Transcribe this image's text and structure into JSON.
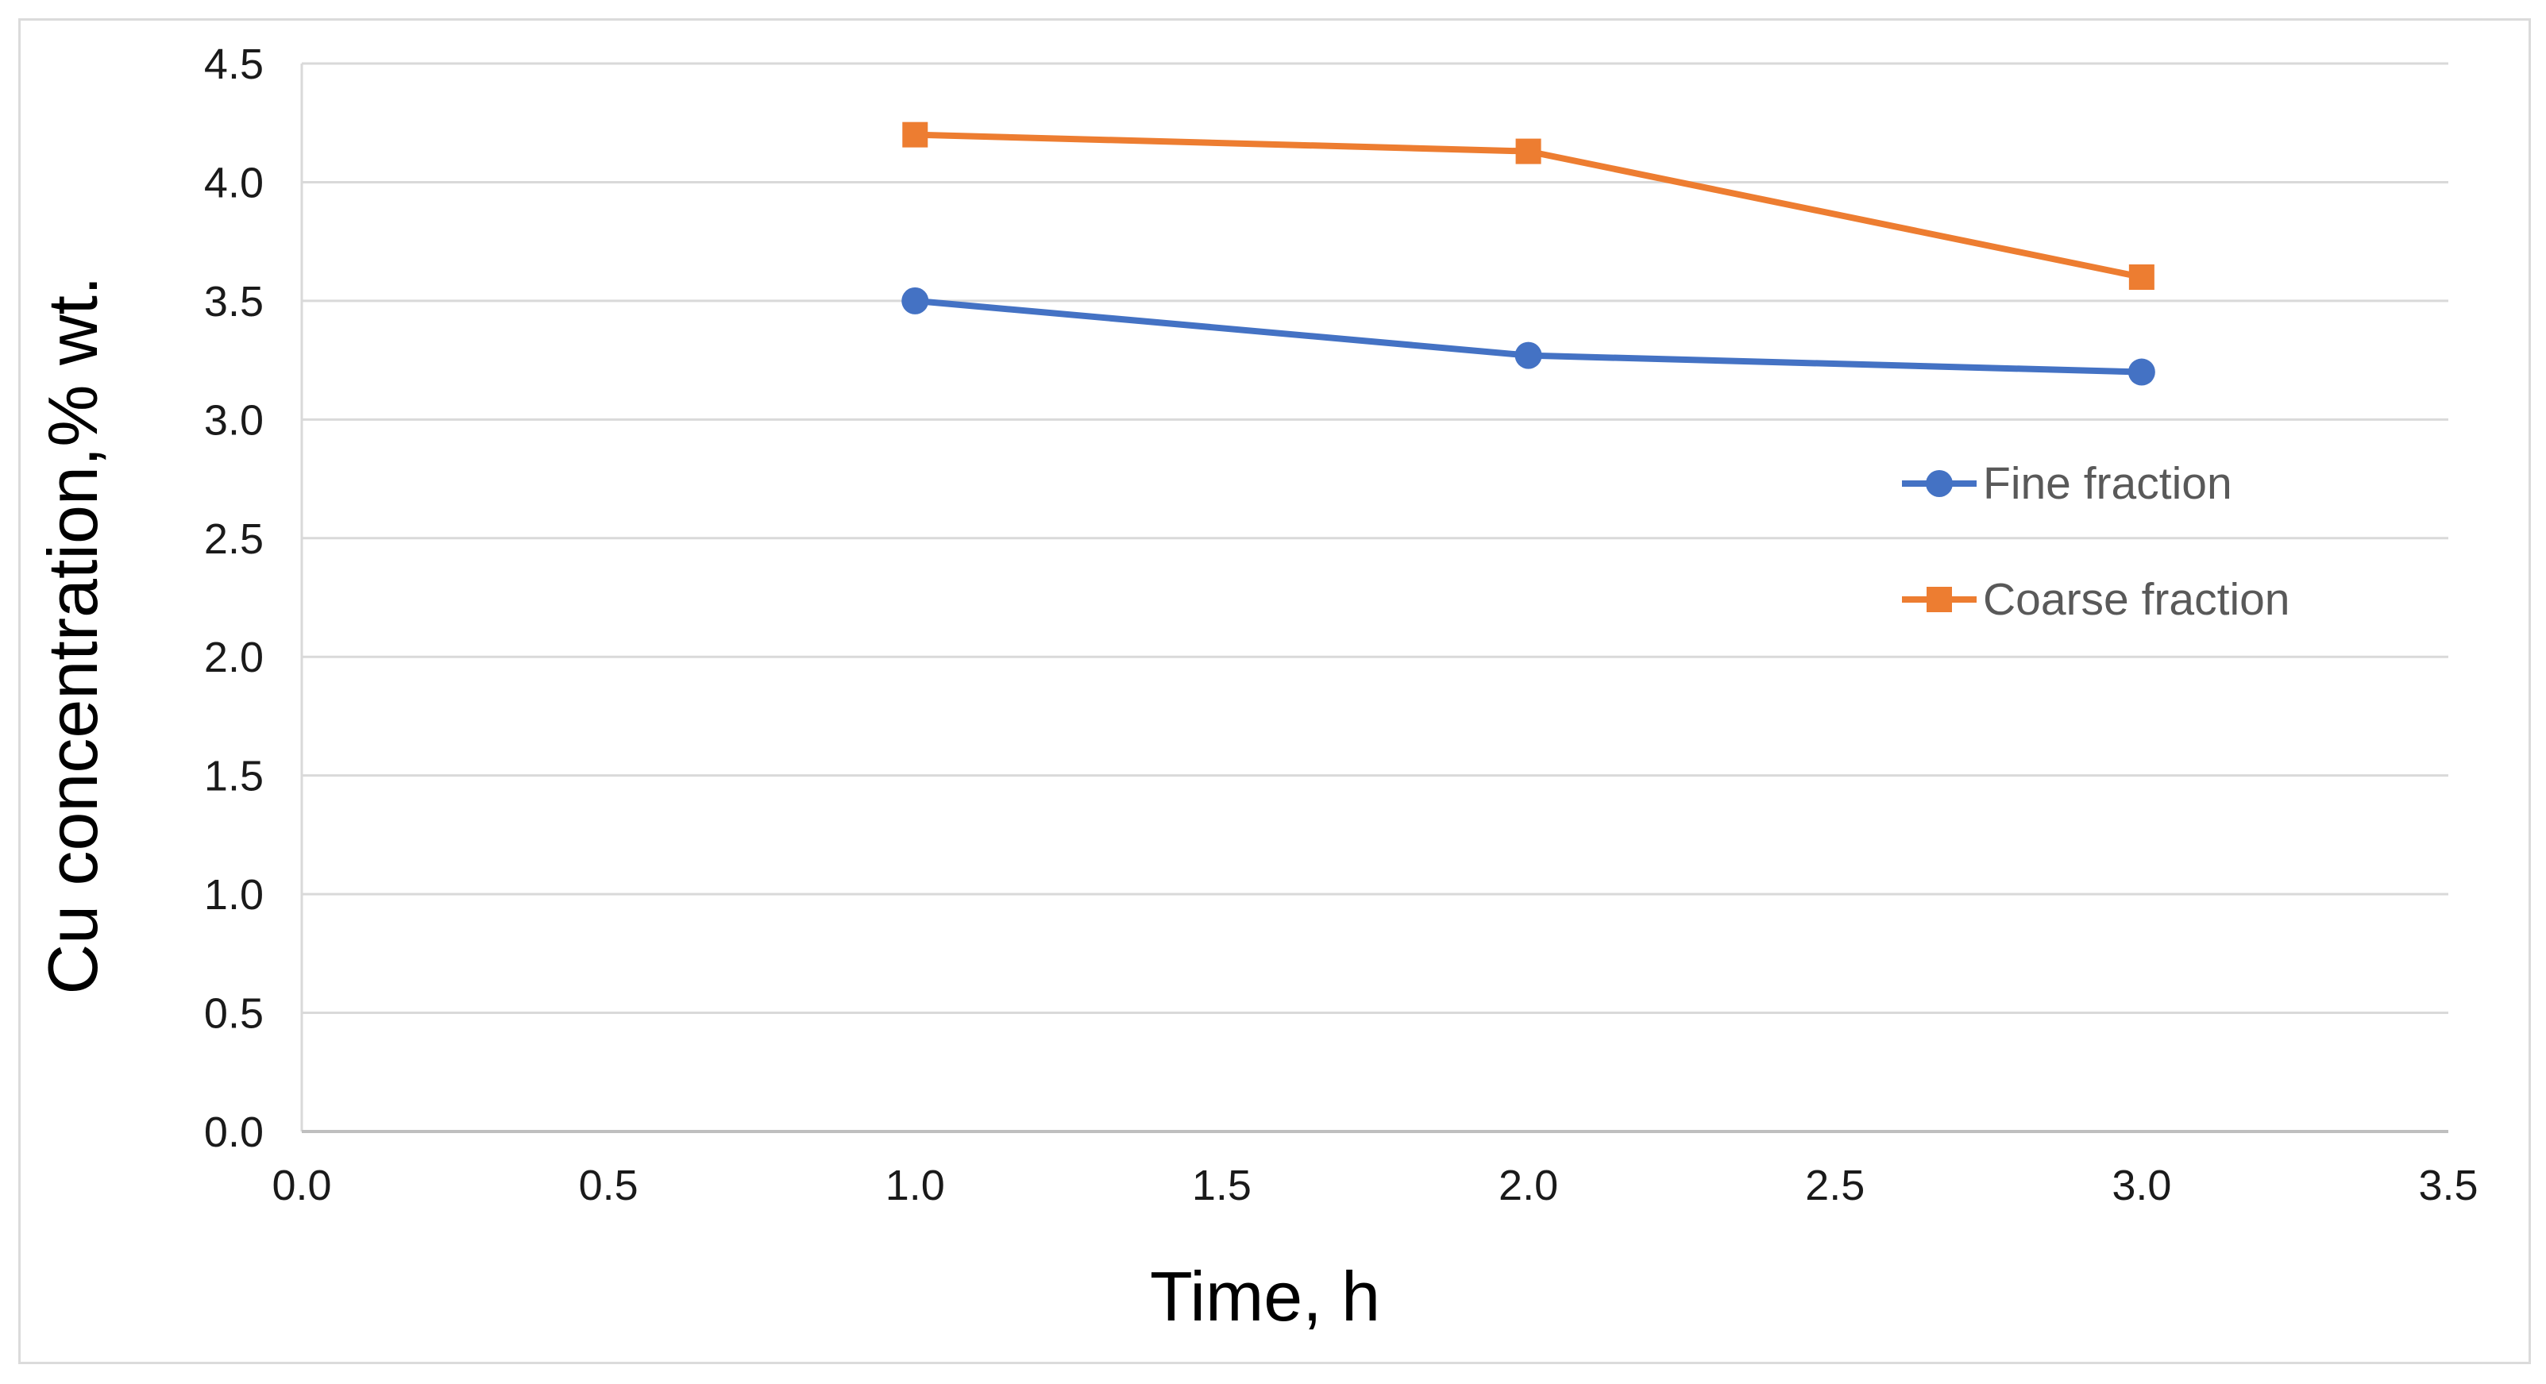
{
  "figure": {
    "background": "#ffffff",
    "border_color": "#dbdbdb"
  },
  "chart_data": {
    "type": "line",
    "title": "",
    "xlabel": "Time, h",
    "ylabel": "Cu concentration,% wt.",
    "x": [
      1.0,
      2.0,
      3.0
    ],
    "series": [
      {
        "name": "Fine fraction",
        "color": "#4472C4",
        "marker": "circle",
        "values": [
          3.5,
          3.27,
          3.2
        ]
      },
      {
        "name": "Coarse fraction",
        "color": "#ED7D31",
        "marker": "square",
        "values": [
          4.2,
          4.13,
          3.6
        ]
      }
    ],
    "xlim": [
      0,
      3.5
    ],
    "ylim": [
      0,
      4.5
    ],
    "x_ticks": {
      "values": [
        0,
        0.5,
        1.0,
        1.5,
        2.0,
        2.5,
        3.0,
        3.5
      ],
      "labels": [
        "0.0",
        "0.5",
        "1.0",
        "1.5",
        "2.0",
        "2.5",
        "3.0",
        "3.5"
      ]
    },
    "y_ticks": {
      "values": [
        0,
        0.5,
        1.0,
        1.5,
        2.0,
        2.5,
        3.0,
        3.5,
        4.0,
        4.5
      ],
      "labels": [
        "0.0",
        "0.5",
        "1.0",
        "1.5",
        "2.0",
        "2.5",
        "3.0",
        "3.5",
        "4.0",
        "4.5"
      ]
    },
    "grid": "horizontal",
    "legend_position": "right-center",
    "colors": {
      "gridline": "#d9d9d9",
      "axis_line": "#bfbfbf",
      "tick_text": "#1a1a1a",
      "title_text": "#000000",
      "legend_text": "#595959"
    }
  }
}
